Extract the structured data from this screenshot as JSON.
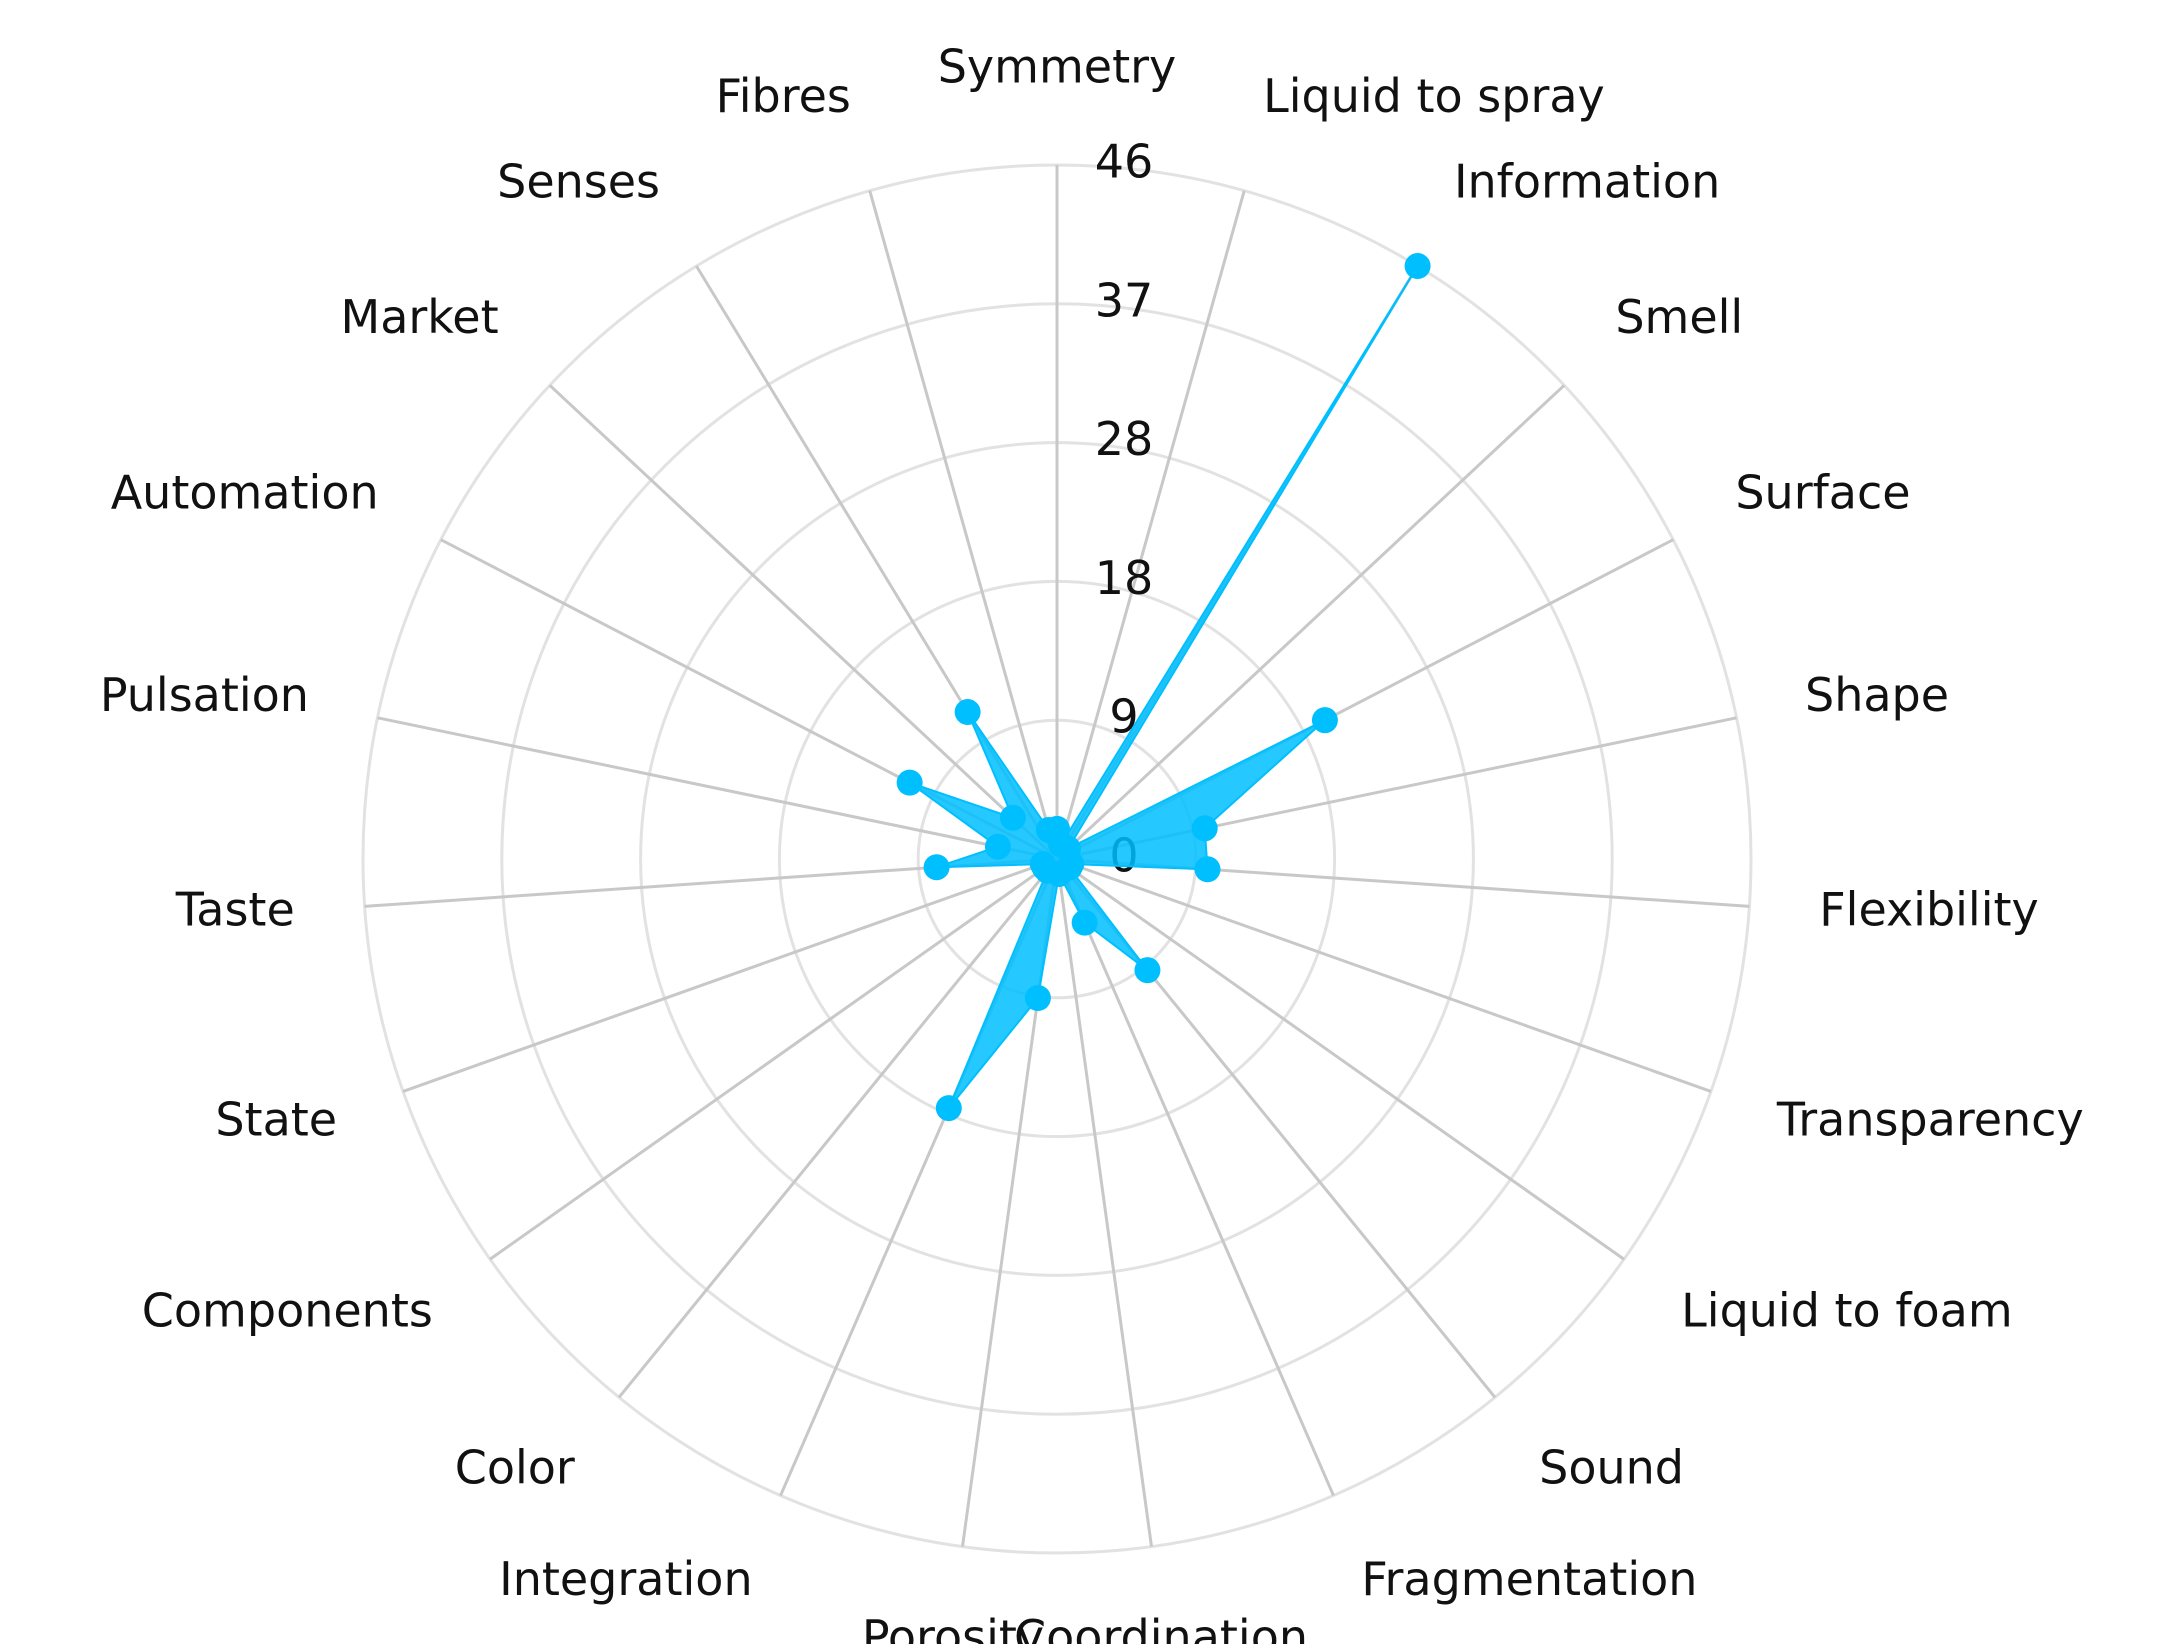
{
  "chart_data": {
    "type": "radar",
    "categories": [
      "Symmetry",
      "Liquid to spray",
      "Information",
      "Smell",
      "Surface",
      "Shape",
      "Flexibility",
      "Transparency",
      "Liquid to foam",
      "Sound",
      "Fragmentation",
      "Coordination",
      "Porosity",
      "Integration",
      "Color",
      "Components",
      "State",
      "Taste",
      "Pulsation",
      "Automation",
      "Market",
      "Senses",
      "Fibres"
    ],
    "values": [
      2,
      1,
      46,
      1,
      20,
      10,
      10,
      1,
      1,
      9.5,
      4.6,
      1,
      9.3,
      18,
      1,
      1,
      1,
      8,
      4,
      11,
      4,
      11.4,
      2
    ],
    "color": "#00bfff",
    "rlim": [
      0,
      46
    ],
    "rticks": [
      0,
      {
        "value": 9.2,
        "label": "9"
      },
      {
        "value": 18.4,
        "label": "18"
      },
      {
        "value": 27.6,
        "label": "28"
      },
      {
        "value": 36.8,
        "label": "37"
      },
      46
    ],
    "grid": true
  }
}
